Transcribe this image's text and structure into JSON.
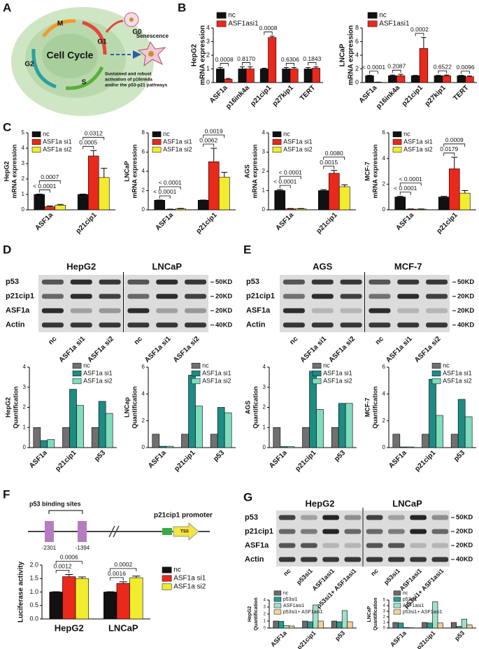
{
  "panel_labels": [
    "A",
    "B",
    "C",
    "D",
    "E",
    "F",
    "G"
  ],
  "cell_cycle": {
    "title": "Cell Cycle",
    "phases": [
      "M",
      "G1",
      "S",
      "G2",
      "G0"
    ],
    "outcome": "Senescence",
    "note": [
      "Sustained and robust",
      "activation of p16ink4a",
      "and/or the p53-p21 pathways"
    ]
  },
  "promoter": {
    "sites_label": "p53 binding sites",
    "promoter_label": "p21cip1 promoter",
    "positions": [
      "-2301",
      "-1394"
    ],
    "tss": "TSS"
  },
  "blots": [
    {
      "cell_lines": [
        "HepG2",
        "LNCaP"
      ],
      "proteins": [
        "p53",
        "p21cip1",
        "ASF1a",
        "Actin"
      ],
      "markers": [
        "50KD",
        "20KD",
        "20KD",
        "40KD"
      ],
      "lanes": [
        "nc",
        "ASF1a si1",
        "ASF1a si2"
      ]
    },
    {
      "cell_lines": [
        "AGS",
        "MCF-7"
      ],
      "proteins": [
        "p53",
        "p21cip1",
        "ASF1a",
        "Actin"
      ],
      "markers": [
        "50KD",
        "20KD",
        "20KD",
        "40KD"
      ],
      "lanes": [
        "nc",
        "ASF1a si1",
        "ASF1a si2"
      ]
    },
    {
      "cell_lines": [
        "HepG2",
        "LNCaP"
      ],
      "proteins": [
        "p53",
        "p21cip1",
        "ASF1a",
        "Actin"
      ],
      "markers": [
        "50KD",
        "20KD",
        "20KD",
        "40KD"
      ],
      "lanes": [
        "nc",
        "p53si1",
        "ASF1asi1",
        "p53si1+ ASF1asi1"
      ]
    }
  ],
  "chart_data": [
    {
      "type": "bar",
      "ylabel": [
        "HepG2",
        "mRNA expression"
      ],
      "categories": [
        "ASF1a",
        "p16ink4a",
        "p21cip1",
        "p27kip1",
        "TERT"
      ],
      "xrotate": true,
      "series": [
        {
          "name": "nc",
          "color": "#111111",
          "values": [
            1,
            1,
            1,
            1,
            1
          ],
          "errors": [
            0.1,
            0.15,
            0.05,
            0.1,
            0.1
          ]
        },
        {
          "name": "ASF1asi1",
          "color": "#e8291c",
          "values": [
            0.25,
            1.0,
            3.3,
            1.0,
            1.05
          ],
          "errors": [
            0.05,
            0.15,
            0.1,
            0.1,
            0.1
          ]
        }
      ],
      "ylim": [
        0,
        4
      ],
      "yticks": [
        0,
        1,
        2,
        3,
        4
      ],
      "annotations": [
        "0.0008",
        "0.8170",
        "0.0008",
        "0.6306",
        "0.1843"
      ]
    },
    {
      "type": "bar",
      "ylabel": [
        "LNCaP",
        "mRNA expression"
      ],
      "categories": [
        "ASF1a",
        "p16ink4a",
        "p21cip1",
        "p27kip1",
        "TERT"
      ],
      "xrotate": true,
      "series": [
        {
          "name": "nc",
          "color": "#111111",
          "values": [
            1,
            1,
            1,
            1,
            1
          ],
          "errors": [
            0.05,
            0.1,
            0.05,
            0.05,
            0.05
          ]
        },
        {
          "name": "ASF1asi1",
          "color": "#e8291c",
          "values": [
            0.05,
            1.0,
            5.0,
            1.0,
            0.85
          ],
          "errors": [
            0.02,
            0.2,
            1.6,
            0.1,
            0.1
          ]
        }
      ],
      "ylim": [
        0,
        8
      ],
      "yticks": [
        0,
        2,
        4,
        6,
        8
      ],
      "annotations": [
        "< 0.0001",
        "0.2087",
        "0.0002",
        "0.6522",
        "0.0096"
      ]
    },
    {
      "type": "bar",
      "ylabel": [
        "HepG2",
        "mRNA expression"
      ],
      "categories": [
        "ASF1a",
        "p21cip1"
      ],
      "xrotate": true,
      "series": [
        {
          "name": "nc",
          "color": "#111111",
          "values": [
            1,
            1
          ],
          "errors": [
            0.02,
            0.02
          ]
        },
        {
          "name": "ASF1a si1",
          "color": "#e8291c",
          "values": [
            0.2,
            3.5
          ],
          "errors": [
            0.05,
            0.35
          ]
        },
        {
          "name": "ASF1a si2",
          "color": "#f2ec2e",
          "values": [
            0.3,
            2.1
          ],
          "errors": [
            0.05,
            0.6
          ]
        }
      ],
      "ylim": [
        0,
        5
      ],
      "yticks": [
        0,
        1,
        2,
        3,
        4,
        5
      ],
      "annotations": [
        "< 0.0001",
        "0.0007",
        "0.0005",
        "0.0312"
      ]
    },
    {
      "type": "bar",
      "ylabel": [
        "LNCaP",
        "mRNA expression"
      ],
      "categories": [
        "ASF1a",
        "p21cip1"
      ],
      "xrotate": true,
      "series": [
        {
          "name": "nc",
          "color": "#111111",
          "values": [
            1,
            1
          ],
          "errors": [
            0.02,
            0.02
          ]
        },
        {
          "name": "ASF1a si1",
          "color": "#e8291c",
          "values": [
            0.05,
            5.0
          ],
          "errors": [
            0.02,
            1.4
          ]
        },
        {
          "name": "ASF1a si2",
          "color": "#f2ec2e",
          "values": [
            0.1,
            3.4
          ],
          "errors": [
            0.05,
            0.5
          ]
        }
      ],
      "ylim": [
        0,
        8
      ],
      "yticks": [
        0,
        2,
        4,
        6,
        8
      ],
      "annotations": [
        "< 0.0001",
        "< 0.0001",
        "0.0062",
        "0.0019"
      ]
    },
    {
      "type": "bar",
      "ylabel": [
        "AGS",
        "mRNA expression"
      ],
      "categories": [
        "ASF1a",
        "p21cip1"
      ],
      "xrotate": true,
      "series": [
        {
          "name": "nc",
          "color": "#111111",
          "values": [
            1,
            1
          ],
          "errors": [
            0.05,
            0.05
          ]
        },
        {
          "name": "ASF1a si1",
          "color": "#e8291c",
          "values": [
            0.05,
            1.9
          ],
          "errors": [
            0.02,
            0.15
          ]
        },
        {
          "name": "ASF1a si2",
          "color": "#f2ec2e",
          "values": [
            0.05,
            1.2
          ],
          "errors": [
            0.02,
            0.1
          ]
        }
      ],
      "ylim": [
        0,
        4
      ],
      "yticks": [
        0,
        1,
        2,
        3,
        4
      ],
      "annotations": [
        "< 0.0001",
        "< 0.0001",
        "0.0015",
        "0.0080"
      ]
    },
    {
      "type": "bar",
      "ylabel": [
        "MCF-7",
        "mRNA expression"
      ],
      "categories": [
        "ASF1a",
        "p21cip1"
      ],
      "xrotate": true,
      "series": [
        {
          "name": "nc",
          "color": "#111111",
          "values": [
            1,
            1
          ],
          "errors": [
            0.05,
            0.05
          ]
        },
        {
          "name": "ASF1a si1",
          "color": "#e8291c",
          "values": [
            0.05,
            3.2
          ],
          "errors": [
            0.02,
            0.9
          ]
        },
        {
          "name": "ASF1a si2",
          "color": "#f2ec2e",
          "values": [
            0.05,
            1.3
          ],
          "errors": [
            0.02,
            0.2
          ]
        }
      ],
      "ylim": [
        0,
        6
      ],
      "yticks": [
        0,
        2,
        4,
        6
      ],
      "annotations": [
        "< 0.0001",
        "< 0.0001",
        "0.0179",
        "0.0009"
      ]
    },
    {
      "type": "bar",
      "ylabel": [
        "HepG2",
        "Quantification"
      ],
      "categories": [
        "ASF1a",
        "p21cip1",
        "p53"
      ],
      "xrotate": true,
      "series": [
        {
          "name": "nc",
          "color": "#707070",
          "values": [
            1,
            1,
            1
          ]
        },
        {
          "name": "ASF1a si1",
          "color": "#1e8c82",
          "values": [
            0.35,
            2.9,
            2.3
          ]
        },
        {
          "name": "ASF1a si2",
          "color": "#7fdcbf",
          "values": [
            0.4,
            2.1,
            1.7
          ]
        }
      ],
      "ylim": [
        0,
        4
      ],
      "yticks": [
        0,
        1,
        2,
        3,
        4
      ]
    },
    {
      "type": "bar",
      "ylabel": [
        "LNCap",
        "Quantification"
      ],
      "categories": [
        "ASF1a",
        "p21cip1",
        "p53"
      ],
      "xrotate": true,
      "series": [
        {
          "name": "nc",
          "color": "#707070",
          "values": [
            1,
            1,
            1
          ]
        },
        {
          "name": "ASF1a si1",
          "color": "#1e8c82",
          "values": [
            0.1,
            5.4,
            3.0
          ]
        },
        {
          "name": "ASF1a si2",
          "color": "#7fdcbf",
          "values": [
            0.1,
            3.1,
            2.6
          ]
        }
      ],
      "ylim": [
        0,
        6
      ],
      "yticks": [
        0,
        2,
        4,
        6
      ]
    },
    {
      "type": "bar",
      "ylabel": [
        "AGS",
        "Quantification"
      ],
      "categories": [
        "ASF1a",
        "p21cip1",
        "p53"
      ],
      "xrotate": true,
      "series": [
        {
          "name": "nc",
          "color": "#707070",
          "values": [
            1,
            1,
            1
          ]
        },
        {
          "name": "ASF1a si1",
          "color": "#1e8c82",
          "values": [
            0.05,
            3.8,
            2.2
          ]
        },
        {
          "name": "ASF1a si2",
          "color": "#7fdcbf",
          "values": [
            0.05,
            1.9,
            2.2
          ]
        }
      ],
      "ylim": [
        0,
        4
      ],
      "yticks": [
        0,
        1,
        2,
        3,
        4
      ]
    },
    {
      "type": "bar",
      "ylabel": [
        "MCF-7",
        "Quantification"
      ],
      "categories": [
        "ASF1a",
        "p21cip1",
        "p53"
      ],
      "xrotate": true,
      "series": [
        {
          "name": "nc",
          "color": "#707070",
          "values": [
            1,
            1,
            1
          ]
        },
        {
          "name": "ASF1a si1",
          "color": "#1e8c82",
          "values": [
            0.05,
            5.1,
            3.6
          ]
        },
        {
          "name": "ASF1a si2",
          "color": "#7fdcbf",
          "values": [
            0.05,
            2.4,
            2.3
          ]
        }
      ],
      "ylim": [
        0,
        6
      ],
      "yticks": [
        0,
        2,
        4,
        6
      ]
    },
    {
      "type": "bar",
      "ylabel": [
        "Luciferase activity"
      ],
      "categories": [
        "HepG2",
        "LNCaP"
      ],
      "xrotate": false,
      "series": [
        {
          "name": "nc",
          "color": "#111111",
          "values": [
            1,
            1
          ],
          "errors": [
            0.01,
            0.01
          ]
        },
        {
          "name": "ASF1a si1",
          "color": "#e8291c",
          "values": [
            1.57,
            1.32
          ],
          "errors": [
            0.08,
            0.06
          ]
        },
        {
          "name": "ASF1a si2",
          "color": "#f2ec2e",
          "values": [
            1.5,
            1.53
          ],
          "errors": [
            0.06,
            0.06
          ]
        }
      ],
      "ylim": [
        0,
        2
      ],
      "yticks": [
        {
          "value": 0,
          "label": "0.0"
        },
        {
          "value": 0.5,
          "label": "0.5"
        },
        {
          "value": 1,
          "label": "1.0"
        },
        {
          "value": 1.5,
          "label": "1.5"
        },
        {
          "value": 2,
          "label": "2.0"
        }
      ],
      "annotations": [
        "0.0012",
        "0.0006",
        "0.0016",
        "0.0002"
      ]
    },
    {
      "type": "bar",
      "ylabel": [
        "HepG2",
        "Quantification"
      ],
      "categories": [
        "ASF1a",
        "p21cip1",
        "p53"
      ],
      "xrotate": true,
      "series": [
        {
          "name": "nc",
          "color": "#6b6b6b",
          "values": [
            1,
            1,
            1
          ]
        },
        {
          "name": "p53si1",
          "color": "#2b9a8e",
          "values": [
            0.95,
            0.9,
            0.9
          ]
        },
        {
          "name": "ASF1asi1",
          "color": "#9fe0c8",
          "values": [
            0.35,
            3.3,
            2.5
          ]
        },
        {
          "name": "p53si1+ ASF1asi1",
          "color": "#f6d19a",
          "values": [
            0.3,
            1.0,
            0.9
          ]
        }
      ],
      "ylim": [
        0,
        4
      ],
      "yticks": [
        0,
        1,
        2,
        3,
        4
      ]
    },
    {
      "type": "bar",
      "ylabel": [
        "LNCaP",
        "Quantification"
      ],
      "categories": [
        "ASF1a",
        "p21cip1",
        "p53"
      ],
      "xrotate": true,
      "series": [
        {
          "name": "nc",
          "color": "#6b6b6b",
          "values": [
            1,
            1,
            1
          ]
        },
        {
          "name": "p53si1",
          "color": "#2b9a8e",
          "values": [
            0.9,
            0.9,
            0.3
          ]
        },
        {
          "name": "ASF1asi1",
          "color": "#9fe0c8",
          "values": [
            0.1,
            4.7,
            1.6
          ]
        },
        {
          "name": "p53si1+ ASF1asi1",
          "color": "#f6d19a",
          "values": [
            0.05,
            0.9,
            0.55
          ]
        }
      ],
      "ylim": [
        0,
        5
      ],
      "yticks": [
        0,
        1,
        2,
        3,
        4,
        5
      ]
    }
  ]
}
